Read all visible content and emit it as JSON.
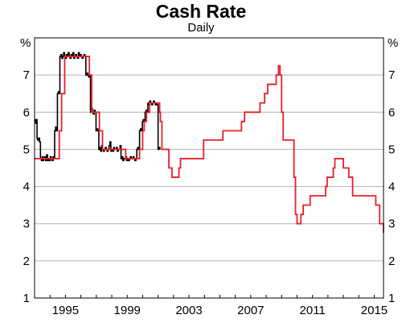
{
  "chart_data": {
    "type": "line",
    "title": "Cash Rate",
    "subtitle": "Daily",
    "ylabel_left": "%",
    "ylabel_right": "%",
    "ylim": [
      1,
      8
    ],
    "xlim": [
      1993.0,
      2015.6
    ],
    "grid": true,
    "y_ticks": [
      1,
      2,
      3,
      4,
      5,
      6,
      7
    ],
    "x_ticks": [
      {
        "value": 1995,
        "label": "1995"
      },
      {
        "value": 1999,
        "label": "1999"
      },
      {
        "value": 2003,
        "label": "2003"
      },
      {
        "value": 2007,
        "label": "2007"
      },
      {
        "value": 2011,
        "label": "2011"
      },
      {
        "value": 2015,
        "label": "2015"
      }
    ],
    "series": [
      {
        "name": "",
        "color": "#000000",
        "step": true,
        "x": [
          1993.0,
          1993.04,
          1993.08,
          1993.12,
          1993.16,
          1993.2,
          1993.26,
          1993.32,
          1993.38,
          1993.44,
          1993.5,
          1993.56,
          1993.6,
          1993.66,
          1993.72,
          1993.78,
          1993.84,
          1993.9,
          1993.96,
          1994.02,
          1994.08,
          1994.14,
          1994.2,
          1994.26,
          1994.3,
          1994.36,
          1994.42,
          1994.48,
          1994.54,
          1994.6,
          1994.64,
          1994.7,
          1994.76,
          1994.82,
          1994.88,
          1994.94,
          1995.0,
          1995.06,
          1995.12,
          1995.18,
          1995.24,
          1995.3,
          1995.36,
          1995.42,
          1995.48,
          1995.54,
          1995.6,
          1995.66,
          1995.72,
          1995.78,
          1995.84,
          1995.9,
          1995.96,
          1996.02,
          1996.08,
          1996.14,
          1996.2,
          1996.26,
          1996.32,
          1996.38,
          1996.44,
          1996.5,
          1996.56,
          1996.62,
          1996.68,
          1996.74,
          1996.8,
          1996.86,
          1996.92,
          1996.98,
          1997.04,
          1997.1,
          1997.16,
          1997.22,
          1997.28,
          1997.34,
          1997.4,
          1997.46,
          1997.52,
          1997.58,
          1997.64,
          1997.7,
          1997.76,
          1997.82,
          1997.88,
          1997.94,
          1998.0,
          1998.06,
          1998.12,
          1998.18,
          1998.24,
          1998.3,
          1998.36,
          1998.42,
          1998.48,
          1998.54,
          1998.6,
          1998.66,
          1998.72,
          1998.78,
          1998.84,
          1998.9,
          1998.96,
          1999.02,
          1999.08,
          1999.14,
          1999.2,
          1999.26,
          1999.32,
          1999.38,
          1999.44,
          1999.5,
          1999.56,
          1999.62,
          1999.68,
          1999.74,
          1999.8,
          1999.86,
          1999.92,
          1999.98,
          2000.04,
          2000.1,
          2000.16,
          2000.22,
          2000.28,
          2000.34,
          2000.4,
          2000.46,
          2000.52,
          2000.58,
          2000.64,
          2000.7,
          2000.76,
          2000.82,
          2000.88,
          2000.94,
          2001.0,
          2001.06,
          2001.12
        ],
        "y": [
          5.75,
          5.8,
          5.7,
          5.8,
          5.3,
          5.25,
          5.3,
          5.2,
          4.75,
          4.7,
          4.8,
          4.7,
          4.75,
          4.8,
          4.7,
          4.85,
          4.7,
          4.75,
          4.7,
          4.8,
          4.75,
          4.7,
          4.8,
          4.75,
          5.5,
          5.6,
          5.5,
          6.5,
          6.55,
          6.5,
          7.5,
          7.55,
          7.45,
          7.5,
          7.6,
          7.5,
          7.45,
          7.55,
          7.5,
          7.6,
          7.5,
          7.45,
          7.55,
          7.5,
          7.6,
          7.45,
          7.5,
          7.55,
          7.5,
          7.45,
          7.6,
          7.5,
          7.55,
          7.5,
          7.45,
          7.5,
          7.55,
          7.5,
          7.0,
          7.05,
          7.0,
          6.95,
          7.0,
          6.0,
          6.1,
          6.0,
          5.95,
          6.05,
          6.0,
          5.5,
          5.55,
          5.5,
          5.0,
          5.05,
          4.95,
          5.1,
          5.0,
          4.95,
          5.0,
          5.05,
          5.0,
          4.95,
          5.0,
          5.1,
          5.2,
          4.95,
          5.0,
          4.95,
          5.05,
          5.0,
          5.0,
          5.05,
          4.95,
          5.0,
          5.0,
          5.1,
          4.75,
          4.8,
          4.7,
          4.75,
          4.75,
          4.8,
          4.7,
          4.75,
          4.7,
          4.75,
          4.8,
          4.75,
          4.75,
          4.8,
          4.75,
          4.7,
          4.75,
          5.0,
          5.05,
          5.0,
          5.5,
          5.55,
          5.5,
          5.75,
          5.8,
          5.75,
          6.0,
          6.05,
          6.0,
          6.25,
          6.2,
          6.3,
          6.25,
          6.2,
          6.25,
          6.3,
          6.25,
          6.2,
          6.25,
          6.2,
          5.0,
          5.05,
          5.0
        ]
      },
      {
        "name": "",
        "color": "#e8202a",
        "step": true,
        "x": [
          1993.0,
          1993.2,
          1993.6,
          1994.6,
          1994.75,
          1994.95,
          1996.55,
          1996.7,
          1997.2,
          1997.4,
          1997.95,
          1998.9,
          1999.8,
          2000.0,
          2000.1,
          2000.25,
          2000.45,
          2000.65,
          2001.05,
          2001.1,
          2001.15,
          2001.25,
          2001.7,
          2001.9,
          2002.35,
          2002.45,
          2003.85,
          2003.95,
          2005.2,
          2006.4,
          2006.6,
          2007.6,
          2007.9,
          2008.1,
          2008.65,
          2008.8,
          2008.9,
          2009.0,
          2009.1,
          2009.8,
          2009.9,
          2010.0,
          2010.25,
          2010.4,
          2010.85,
          2011.85,
          2011.95,
          2012.35,
          2012.45,
          2012.9,
          2013.0,
          2013.35,
          2013.6,
          2015.1,
          2015.35,
          2015.6
        ],
        "y": [
          4.75,
          4.75,
          4.75,
          5.5,
          6.5,
          7.5,
          7.0,
          6.0,
          5.5,
          5.0,
          5.0,
          4.75,
          5.0,
          5.5,
          5.75,
          6.0,
          6.25,
          6.25,
          6.25,
          6.0,
          5.75,
          5.0,
          4.5,
          4.25,
          4.5,
          4.75,
          4.75,
          5.25,
          5.5,
          5.75,
          6.0,
          6.25,
          6.5,
          6.75,
          7.0,
          7.25,
          7.0,
          6.0,
          5.25,
          4.25,
          3.25,
          3.0,
          3.25,
          3.5,
          3.75,
          4.0,
          4.25,
          4.5,
          4.75,
          4.75,
          4.5,
          4.25,
          3.75,
          3.5,
          3.0,
          2.75
        ]
      }
    ]
  }
}
